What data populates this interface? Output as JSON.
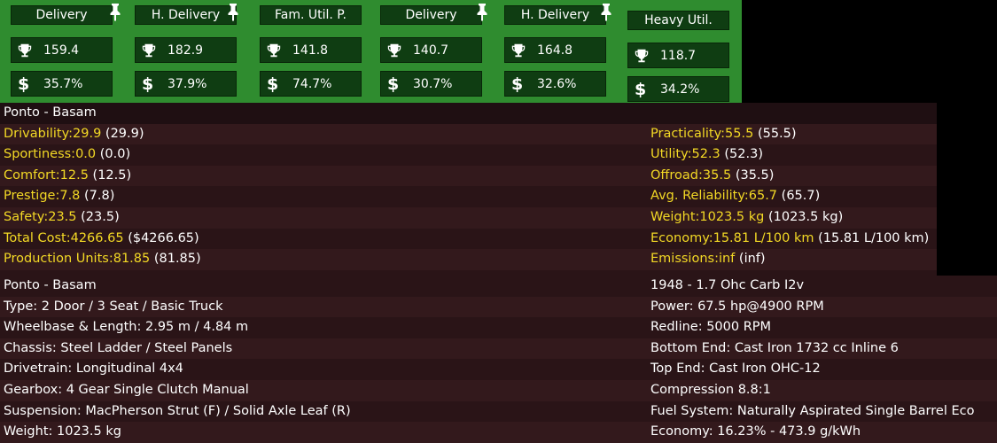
{
  "market": {
    "columns": [
      {
        "title": "Delivery",
        "pinned": true,
        "score": "159.4",
        "share": "35.7%"
      },
      {
        "title": "H. Delivery",
        "pinned": true,
        "score": "182.9",
        "share": "37.9%"
      },
      {
        "title": "Fam. Util. P.",
        "pinned": false,
        "score": "141.8",
        "share": "74.7%"
      },
      {
        "title": "Delivery",
        "pinned": true,
        "score": "140.7",
        "share": "30.7%"
      },
      {
        "title": "H. Delivery",
        "pinned": true,
        "score": "164.8",
        "share": "32.6%"
      },
      {
        "title": "Heavy Util.",
        "pinned": false,
        "score": "118.7",
        "share": "34.2%"
      }
    ],
    "score_icon": "trophy-icon",
    "share_icon": "dollar-icon",
    "dollar_glyph": "$"
  },
  "stats": {
    "header": "Ponto - Basam",
    "left": [
      {
        "label": "Drivability:",
        "value": "29.9",
        "ref": "(29.9)"
      },
      {
        "label": "Sportiness:",
        "value": "0.0",
        "ref": "(0.0)"
      },
      {
        "label": "Comfort:",
        "value": "12.5",
        "ref": "(12.5)"
      },
      {
        "label": "Prestige:",
        "value": "7.8",
        "ref": "(7.8)"
      },
      {
        "label": "Safety:",
        "value": "23.5",
        "ref": "(23.5)"
      },
      {
        "label": "Total Cost:",
        "value": "4266.65",
        "ref": "($4266.65)"
      },
      {
        "label": "Production Units:",
        "value": "81.85",
        "ref": "(81.85)"
      }
    ],
    "right": [
      {
        "label": "Practicality:",
        "value": "55.5",
        "ref": "(55.5)"
      },
      {
        "label": "Utility:",
        "value": "52.3",
        "ref": "(52.3)"
      },
      {
        "label": "Offroad:",
        "value": "35.5",
        "ref": "(35.5)"
      },
      {
        "label": "Avg. Reliability:",
        "value": "65.7",
        "ref": "(65.7)"
      },
      {
        "label": "Weight:",
        "value": "1023.5 kg",
        "ref": "(1023.5 kg)"
      },
      {
        "label": "Economy:",
        "value": "15.81 L/100 km",
        "ref": "(15.81 L/100 km)"
      },
      {
        "label": "Emissions:",
        "value": "inf",
        "ref": "(inf)"
      }
    ]
  },
  "details": {
    "left": [
      "Ponto - Basam",
      "Type: 2 Door / 3 Seat / Basic Truck",
      "Wheelbase & Length: 2.95 m / 4.84 m",
      "Chassis: Steel Ladder / Steel Panels",
      "Drivetrain: Longitudinal 4x4",
      "Gearbox: 4 Gear Single Clutch Manual",
      "Suspension: MacPherson Strut (F) / Solid Axle Leaf (R)",
      "Weight: 1023.5 kg"
    ],
    "right": [
      "1948 - 1.7 Ohc Carb I2v",
      "Power: 67.5 hp@4900 RPM",
      "Redline: 5000 RPM",
      "Bottom End: Cast Iron 1732 cc Inline 6",
      "Top End: Cast Iron OHC-12",
      "Compression 8.8:1",
      "Fuel System: Naturally Aspirated Single Barrel Eco",
      "Economy: 16.23% - 473.9 g/kWh"
    ]
  }
}
